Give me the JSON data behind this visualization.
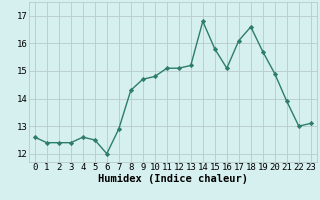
{
  "x": [
    0,
    1,
    2,
    3,
    4,
    5,
    6,
    7,
    8,
    9,
    10,
    11,
    12,
    13,
    14,
    15,
    16,
    17,
    18,
    19,
    20,
    21,
    22,
    23
  ],
  "y": [
    12.6,
    12.4,
    12.4,
    12.4,
    12.6,
    12.5,
    12.0,
    12.9,
    14.3,
    14.7,
    14.8,
    15.1,
    15.1,
    15.2,
    16.8,
    15.8,
    15.1,
    16.1,
    16.6,
    15.7,
    14.9,
    13.9,
    13.0,
    13.1
  ],
  "line_color": "#2d7d6b",
  "marker": "D",
  "marker_size": 2.2,
  "line_width": 1.0,
  "bg_color": "#d5f0ee",
  "grid_color": "#b8ccc9",
  "xlabel": "Humidex (Indice chaleur)",
  "xlabel_fontsize": 7.5,
  "ylabel_ticks": [
    12,
    13,
    14,
    15,
    16,
    17
  ],
  "ylim": [
    11.7,
    17.5
  ],
  "xlim": [
    -0.5,
    23.5
  ],
  "tick_fontsize": 6.5
}
